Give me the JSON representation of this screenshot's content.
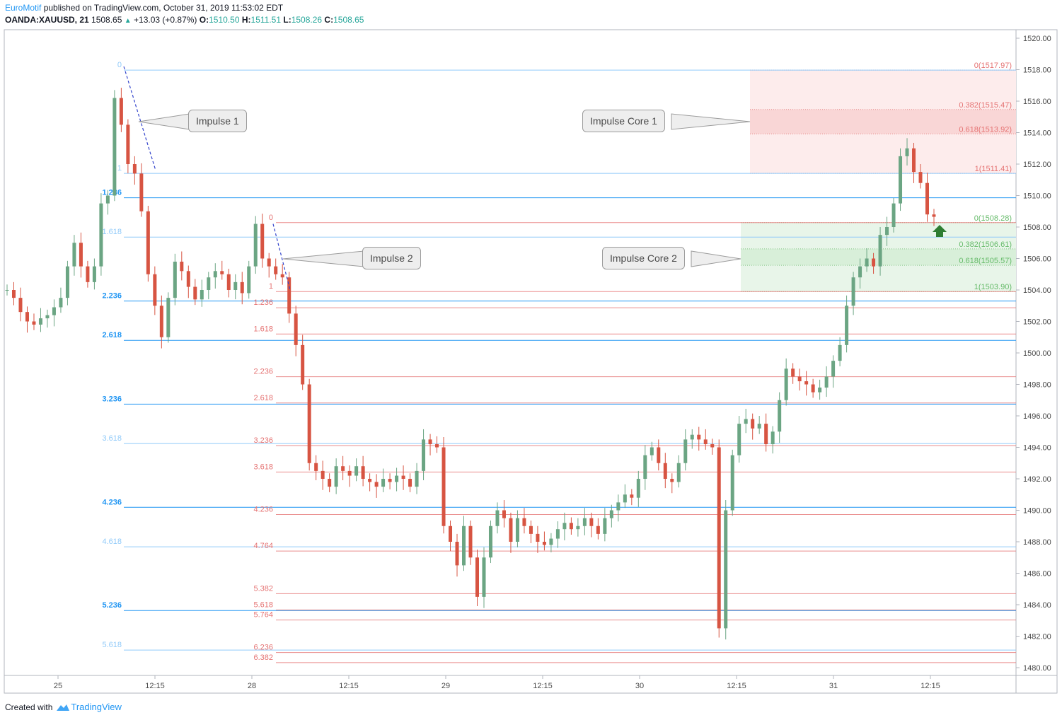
{
  "header": {
    "publisher": "EuroMotif",
    "published_text": "published on TradingView.com, October 31, 2019 11:53:02 EDT",
    "symbol": "OANDA:XAUUSD, 21",
    "last": "1508.65",
    "change": "+13.03 (+0.87%)",
    "o_label": "O:",
    "o": "1510.50",
    "h_label": "H:",
    "h": "1511.51",
    "l_label": "L:",
    "l": "1508.26",
    "c_label": "C:",
    "c": "1508.65"
  },
  "footer": {
    "created_with": "Created with",
    "brand": "TradingView"
  },
  "colors": {
    "up": "#6ba583",
    "down": "#d75442",
    "fib1": "#2196f3",
    "fib1_light": "#90caf9",
    "fib2": "#e57373",
    "core1_fill": "#fdecec",
    "core2_fill": "#e8f5e9"
  },
  "callouts": {
    "impulse1": "Impulse 1",
    "impulse2": "Impulse 2",
    "core1": "Impulse Core 1",
    "core2": "Impulse Core 2"
  },
  "chart_data": {
    "type": "candlestick",
    "y_axis": {
      "min": 1480,
      "max": 1520,
      "ticks": [
        "1480.00",
        "1482.00",
        "1484.00",
        "1486.00",
        "1488.00",
        "1490.00",
        "1492.00",
        "1494.00",
        "1496.00",
        "1498.00",
        "1500.00",
        "1502.00",
        "1504.00",
        "1506.00",
        "1508.00",
        "1510.00",
        "1512.00",
        "1514.00",
        "1516.00",
        "1518.00",
        "1520.00"
      ]
    },
    "x_axis": {
      "ticks": [
        "25",
        "12:15",
        "28",
        "12:15",
        "29",
        "12:15",
        "30",
        "12:15",
        "31",
        "12:15"
      ]
    },
    "impulse1_fib": {
      "levels": [
        {
          "label": "0",
          "price": 1517.97,
          "strong": false
        },
        {
          "label": "1",
          "price": 1511.41,
          "strong": false
        },
        {
          "label": "1.236",
          "price": 1509.86,
          "strong": true
        },
        {
          "label": "1.618",
          "price": 1507.36,
          "strong": false
        },
        {
          "label": "2.236",
          "price": 1503.3,
          "strong": true
        },
        {
          "label": "2.618",
          "price": 1500.8,
          "strong": true
        },
        {
          "label": "3.236",
          "price": 1496.75,
          "strong": true
        },
        {
          "label": "3.618",
          "price": 1494.24,
          "strong": false
        },
        {
          "label": "4.236",
          "price": 1490.19,
          "strong": true
        },
        {
          "label": "4.618",
          "price": 1487.68,
          "strong": false
        },
        {
          "label": "5.236",
          "price": 1483.63,
          "strong": true
        },
        {
          "label": "5.618",
          "price": 1481.12,
          "strong": false
        }
      ]
    },
    "impulse2_fib": {
      "levels": [
        {
          "label": "0",
          "price": 1508.28
        },
        {
          "label": "1",
          "price": 1503.9
        },
        {
          "label": "1.236",
          "price": 1502.87
        },
        {
          "label": "1.618",
          "price": 1501.2
        },
        {
          "label": "2.236",
          "price": 1498.49
        },
        {
          "label": "2.618",
          "price": 1496.82
        },
        {
          "label": "3.236",
          "price": 1494.11
        },
        {
          "label": "3.618",
          "price": 1492.43
        },
        {
          "label": "4.236",
          "price": 1489.73
        },
        {
          "label": "4.764",
          "price": 1487.41
        },
        {
          "label": "5.382",
          "price": 1484.7
        },
        {
          "label": "5.618",
          "price": 1483.67
        },
        {
          "label": "5.764",
          "price": 1483.03
        },
        {
          "label": "6.236",
          "price": 1480.96
        },
        {
          "label": "6.382",
          "price": 1480.32
        }
      ]
    },
    "core1": {
      "levels": [
        {
          "label": "0(1517.97)",
          "price": 1517.97
        },
        {
          "label": "0.382(1515.47)",
          "price": 1515.47
        },
        {
          "label": "0.618(1513.92)",
          "price": 1513.92
        },
        {
          "label": "1(1511.41)",
          "price": 1511.41
        }
      ]
    },
    "core2": {
      "levels": [
        {
          "label": "0(1508.28)",
          "price": 1508.28
        },
        {
          "label": "0.382(1506.61)",
          "price": 1506.61
        },
        {
          "label": "0.618(1505.57)",
          "price": 1505.57
        },
        {
          "label": "1(1503.90)",
          "price": 1503.9
        }
      ]
    },
    "candles_path": [
      1504.0,
      1503.5,
      1502.6,
      1502.0,
      1501.8,
      1502.2,
      1502.4,
      1502.9,
      1503.5,
      1505.5,
      1507.0,
      1505.5,
      1504.5,
      1505.5,
      1509.5,
      1510.0,
      1516.2,
      1514.5,
      1512.0,
      1511.4,
      1509.0,
      1505.0,
      1503.0,
      1501.0,
      1503.5,
      1505.8,
      1505.2,
      1504.2,
      1503.4,
      1504.0,
      1504.8,
      1505.2,
      1505.0,
      1504.0,
      1504.5,
      1503.8,
      1505.5,
      1508.2,
      1506.0,
      1505.5,
      1505.0,
      1504.8,
      1502.5,
      1500.5,
      1498.0,
      1493.0,
      1492.5,
      1492.0,
      1491.5,
      1492.8,
      1492.5,
      1492.2,
      1492.8,
      1492.0,
      1491.8,
      1491.5,
      1492.0,
      1491.8,
      1492.2,
      1492.0,
      1491.5,
      1492.5,
      1494.5,
      1494.2,
      1494.0,
      1489.0,
      1488.0,
      1486.5,
      1489.0,
      1487.0,
      1484.5,
      1487.0,
      1489.0,
      1490.0,
      1489.5,
      1488.0,
      1489.5,
      1489.0,
      1488.5,
      1488.0,
      1487.8,
      1488.2,
      1488.8,
      1489.2,
      1488.8,
      1489.0,
      1489.5,
      1489.0,
      1488.5,
      1489.5,
      1490.0,
      1490.5,
      1491.0,
      1490.8,
      1492.0,
      1493.5,
      1494.0,
      1493.0,
      1492.0,
      1491.8,
      1493.0,
      1494.5,
      1494.8,
      1494.5,
      1494.2,
      1494.0,
      1482.5,
      1490.0,
      1493.5,
      1495.5,
      1495.8,
      1495.2,
      1495.5,
      1494.2,
      1495.0,
      1497.0,
      1499.0,
      1498.5,
      1498.2,
      1498.0,
      1497.5,
      1497.8,
      1498.5,
      1499.5,
      1500.5,
      1503.0,
      1504.8,
      1505.5,
      1506.0,
      1505.5,
      1507.5,
      1508.0,
      1509.5,
      1512.5,
      1513.0,
      1511.5,
      1510.8,
      1508.8,
      1508.65
    ],
    "impulse1_dash": {
      "from": [
        1518.2
      ],
      "to": [
        1511.6
      ]
    },
    "impulse2_dash": {
      "from": [
        1508.2
      ],
      "to": [
        1504.0
      ]
    }
  }
}
